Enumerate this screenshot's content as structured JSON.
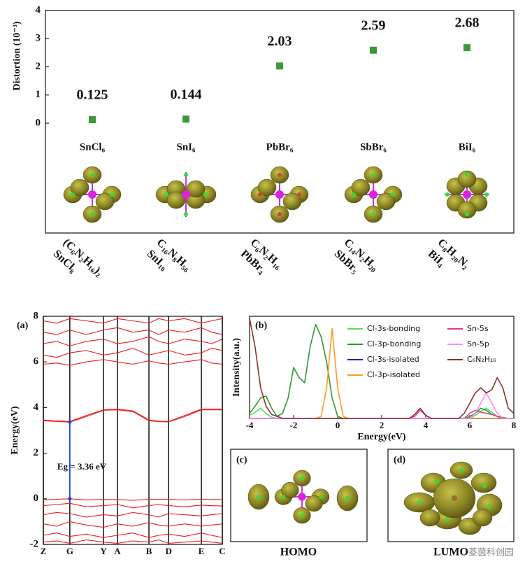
{
  "chart_data": [
    {
      "type": "scatter",
      "ylabel": "Distortion (10⁻³)",
      "categories": [
        "SnCl₆",
        "SnI₆",
        "PbBr₆",
        "SbBr₆",
        "BiI₆"
      ],
      "values": [
        0.125,
        0.144,
        2.03,
        2.59,
        2.68
      ],
      "compounds": [
        [
          "(C₆N₂H₁₆)₂",
          "SnCl₈"
        ],
        [
          "C₁₆N₈H₅₆",
          "SnI₁₀"
        ],
        [
          "C₆N₂H₁₆",
          "PbBr₄"
        ],
        [
          "C₁₄N₂H₂₀",
          "SbBr₅"
        ],
        [
          "C₈H₂₀N₂",
          "BiI₄"
        ]
      ],
      "color": "#3a9a3a",
      "ylim": [
        -3.9,
        4
      ],
      "yticks": [
        0,
        1,
        2,
        3,
        4
      ]
    },
    {
      "type": "line",
      "panel_label": "(a)",
      "ylabel": "Energy(eV)",
      "annotation": "Eg = 3.36 eV",
      "x": [
        0,
        0.075,
        0.148,
        0.24,
        0.336,
        0.414,
        0.5,
        0.59,
        0.645,
        0.7,
        0.79,
        0.883,
        0.94,
        1
      ],
      "xlim": [
        0,
        1
      ],
      "xticks": [
        {
          "value": 0,
          "label": "Z"
        },
        {
          "value": 0.148,
          "label": "G"
        },
        {
          "value": 0.336,
          "label": "Y"
        },
        {
          "value": 0.414,
          "label": "A"
        },
        {
          "value": 0.59,
          "label": "B"
        },
        {
          "value": 0.7,
          "label": "D"
        },
        {
          "value": 0.883,
          "label": "E"
        },
        {
          "value": 1,
          "label": "C"
        }
      ],
      "ylim": [
        -2,
        8
      ],
      "yticks": [
        -2,
        0,
        2,
        4,
        6,
        8
      ],
      "grid": true,
      "series": [
        {
          "color": "#ee1c1c",
          "values": [
            3.42,
            3.39,
            3.36,
            3.6,
            3.88,
            3.9,
            3.82,
            3.42,
            3.38,
            3.37,
            3.6,
            3.9,
            3.9,
            3.9
          ]
        },
        {
          "color": "#ee1c1c",
          "values": [
            3.45,
            3.41,
            3.39,
            3.65,
            3.9,
            3.93,
            3.86,
            3.46,
            3.4,
            3.39,
            3.65,
            3.93,
            3.93,
            3.93
          ]
        },
        {
          "color": "#ee1c1c",
          "values": [
            5.9,
            5.95,
            5.85,
            6.0,
            6.1,
            6.0,
            5.9,
            6.05,
            5.95,
            5.9,
            6.0,
            6.1,
            5.95,
            5.9
          ]
        },
        {
          "color": "#ee1c1c",
          "values": [
            6.3,
            6.2,
            6.4,
            6.5,
            6.3,
            6.4,
            6.6,
            6.3,
            6.4,
            6.5,
            6.3,
            6.4,
            6.6,
            6.5
          ]
        },
        {
          "color": "#ee1c1c",
          "values": [
            6.8,
            6.9,
            6.7,
            6.9,
            7.0,
            6.8,
            6.9,
            7.1,
            6.9,
            6.8,
            7.0,
            6.9,
            6.8,
            7.0
          ]
        },
        {
          "color": "#ee1c1c",
          "values": [
            7.3,
            7.2,
            7.4,
            7.2,
            7.4,
            7.5,
            7.3,
            7.4,
            7.2,
            7.4,
            7.3,
            7.5,
            7.3,
            7.2
          ]
        },
        {
          "color": "#ee1c1c",
          "values": [
            7.8,
            7.7,
            7.9,
            7.8,
            7.7,
            7.9,
            7.8,
            7.7,
            7.9,
            7.8,
            7.9,
            7.7,
            7.8,
            7.9
          ]
        },
        {
          "color": "#ee1c1c",
          "values": [
            -0.05,
            -0.02,
            0,
            -0.05,
            -0.03,
            -0.04,
            -0.06,
            -0.03,
            -0.02,
            -0.03,
            -0.05,
            -0.02,
            -0.03,
            -0.04
          ]
        },
        {
          "color": "#ee1c1c",
          "values": [
            -0.3,
            -0.25,
            -0.2,
            -0.35,
            -0.3,
            -0.25,
            -0.4,
            -0.3,
            -0.25,
            -0.3,
            -0.35,
            -0.28,
            -0.3,
            -0.32
          ]
        },
        {
          "color": "#ee1c1c",
          "values": [
            -0.7,
            -0.6,
            -0.65,
            -0.8,
            -0.7,
            -0.75,
            -0.6,
            -0.7,
            -0.8,
            -0.65,
            -0.7,
            -0.75,
            -0.7,
            -0.65
          ]
        },
        {
          "color": "#ee1c1c",
          "values": [
            -1.1,
            -1.2,
            -1.0,
            -1.15,
            -1.25,
            -1.1,
            -1.2,
            -1.05,
            -1.15,
            -1.2,
            -1.1,
            -1.2,
            -1.15,
            -1.1
          ]
        },
        {
          "color": "#ee1c1c",
          "values": [
            -1.6,
            -1.5,
            -1.65,
            -1.55,
            -1.7,
            -1.6,
            -1.5,
            -1.7,
            -1.6,
            -1.55,
            -1.65,
            -1.5,
            -1.6,
            -1.7
          ]
        },
        {
          "color": "#ee1c1c",
          "values": [
            -1.9,
            -1.85,
            -1.95,
            -1.8,
            -1.9,
            -1.95,
            -1.85,
            -1.9,
            -1.8,
            -1.95,
            -1.9,
            -1.85,
            -1.9,
            -1.95
          ]
        }
      ]
    },
    {
      "type": "line",
      "panel_label": "(b)",
      "xlabel": "Energy(eV)",
      "ylabel": "Intensity(a.u.)",
      "x": [
        -4,
        -3.75,
        -3.5,
        -3.25,
        -3,
        -2.75,
        -2.5,
        -2.25,
        -2,
        -1.75,
        -1.5,
        -1.25,
        -1,
        -0.75,
        -0.5,
        -0.25,
        0,
        0.25,
        0.5,
        0.75,
        1,
        1.25,
        1.5,
        1.75,
        2,
        2.25,
        2.5,
        2.75,
        3,
        3.25,
        3.5,
        3.75,
        4,
        4.25,
        4.5,
        4.75,
        5,
        5.25,
        5.5,
        5.75,
        6,
        6.25,
        6.5,
        6.75,
        7,
        7.25,
        7.5,
        7.75,
        8
      ],
      "xlim": [
        -4,
        8
      ],
      "xticks": [
        -4,
        -2,
        0,
        2,
        4,
        6,
        8
      ],
      "ylim": [
        0,
        1
      ],
      "legend": "upper right",
      "series": [
        {
          "name": "Cl-3s-bonding",
          "color": "#55e055",
          "values": [
            0.03,
            0.06,
            0.1,
            0.05,
            0.01,
            0,
            0,
            0,
            0,
            0,
            0,
            0,
            0,
            0,
            0,
            0,
            0,
            0,
            0,
            0,
            0,
            0,
            0,
            0,
            0,
            0,
            0,
            0,
            0,
            0,
            0,
            0,
            0,
            0,
            0,
            0,
            0,
            0,
            0,
            0,
            0,
            0.03,
            0.07,
            0.1,
            0.06,
            0.02,
            0,
            0,
            0
          ]
        },
        {
          "name": "Cl-3p-bonding",
          "color": "#2e9a2e",
          "values": [
            0.05,
            0.12,
            0.2,
            0.22,
            0.1,
            0.02,
            0.05,
            0.2,
            0.5,
            0.4,
            0.35,
            0.7,
            0.92,
            0.8,
            0.55,
            0.2,
            0.02,
            0,
            0,
            0,
            0,
            0,
            0,
            0,
            0,
            0,
            0,
            0,
            0,
            0,
            0,
            0,
            0,
            0,
            0,
            0,
            0,
            0,
            0,
            0,
            0.02,
            0.05,
            0.1,
            0.08,
            0.04,
            0.02,
            0.01,
            0,
            0
          ]
        },
        {
          "name": "Cl-3s-isolated",
          "color": "#2020c8",
          "values": [
            0,
            0,
            0,
            0,
            0,
            0,
            0,
            0,
            0,
            0,
            0,
            0,
            0,
            0,
            0,
            0,
            0,
            0,
            0,
            0,
            0,
            0,
            0,
            0,
            0,
            0,
            0,
            0,
            0,
            0,
            0,
            0,
            0,
            0,
            0,
            0,
            0,
            0,
            0,
            0,
            0,
            0,
            0,
            0,
            0,
            0,
            0,
            0,
            0
          ]
        },
        {
          "name": "Cl-3p-isolated",
          "color": "#ff9a1e",
          "values": [
            0,
            0,
            0,
            0,
            0,
            0,
            0,
            0,
            0,
            0,
            0,
            0,
            0,
            0.02,
            0.3,
            0.88,
            0.3,
            0.02,
            0,
            0,
            0,
            0,
            0,
            0,
            0,
            0,
            0,
            0,
            0,
            0,
            0,
            0,
            0,
            0,
            0,
            0,
            0,
            0,
            0,
            0,
            0,
            0,
            0,
            0,
            0,
            0,
            0,
            0,
            0
          ]
        },
        {
          "name": "Sn-5s",
          "color": "#e03c96",
          "values": [
            0,
            0,
            0,
            0,
            0,
            0,
            0,
            0,
            0,
            0,
            0,
            0,
            0,
            0,
            0,
            0,
            0,
            0,
            0,
            0,
            0,
            0,
            0,
            0,
            0,
            0,
            0,
            0,
            0,
            0,
            0.02,
            0.08,
            0.03,
            0,
            0,
            0,
            0,
            0,
            0,
            0,
            0.05,
            0.08,
            0.06,
            0.05,
            0.04,
            0.02,
            0,
            0,
            0
          ]
        },
        {
          "name": "Sn-5p",
          "color": "#ff88ff",
          "values": [
            0,
            0,
            0,
            0,
            0,
            0,
            0,
            0,
            0,
            0,
            0,
            0,
            0,
            0,
            0,
            0,
            0,
            0,
            0,
            0,
            0,
            0,
            0,
            0,
            0,
            0,
            0,
            0,
            0,
            0,
            0,
            0,
            0,
            0,
            0,
            0,
            0,
            0,
            0,
            0,
            0,
            0.05,
            0.15,
            0.25,
            0.15,
            0.05,
            0,
            0,
            0
          ]
        },
        {
          "name": "C₆N₂H₁₆",
          "color": "#8b3030",
          "values": [
            0.98,
            0.7,
            0.3,
            0.12,
            0.04,
            0.02,
            0,
            0,
            0,
            0,
            0,
            0,
            0,
            0,
            0,
            0,
            0,
            0,
            0,
            0,
            0,
            0,
            0,
            0,
            0,
            0,
            0,
            0,
            0,
            0,
            0.04,
            0.1,
            0.03,
            0,
            0,
            0,
            0,
            0,
            0,
            0.05,
            0.15,
            0.25,
            0.3,
            0.25,
            0.28,
            0.4,
            0.3,
            0.1,
            0.05
          ]
        }
      ]
    }
  ],
  "panels": [
    {
      "label": "(c)",
      "caption": "HOMO"
    },
    {
      "label": "(d)",
      "caption": "LUMO"
    }
  ],
  "watermark": "菱茵科创园"
}
